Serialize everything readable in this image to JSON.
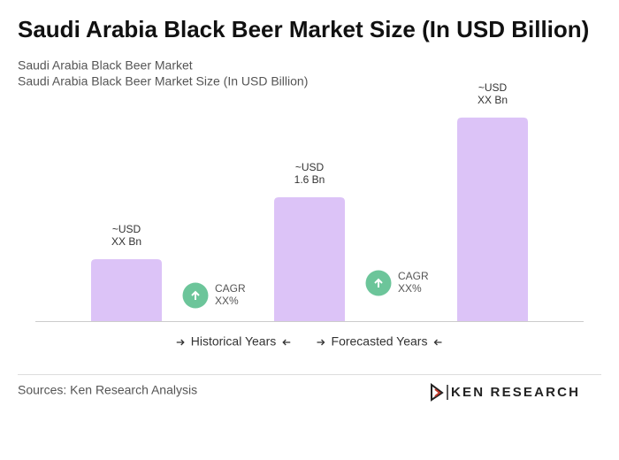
{
  "chart_data": {
    "type": "bar",
    "title": "Saudi Arabia Black Beer Market Size (In USD Billion)",
    "subtitle": [
      "Saudi Arabia Black Beer Market",
      "Saudi Arabia Black Beer Market Size (In USD Billion)"
    ],
    "categories": [
      null,
      null,
      null
    ],
    "values": [
      0.8,
      1.6,
      2.63
    ],
    "value_labels": [
      [
        "~USD",
        "XX Bn"
      ],
      [
        "~USD",
        "1.6 Bn"
      ],
      [
        "~USD",
        "XX Bn"
      ]
    ],
    "color": "#dcc3f7",
    "ylim": [
      0,
      2.8
    ],
    "annotations": [
      [
        "CAGR",
        "XX%"
      ],
      [
        "CAGR",
        "XX%"
      ]
    ],
    "periods": [
      "Historical Years",
      "Forecasted Years"
    ],
    "source": "Sources: Ken Research Analysis",
    "logo": "KEN RESEARCH"
  }
}
